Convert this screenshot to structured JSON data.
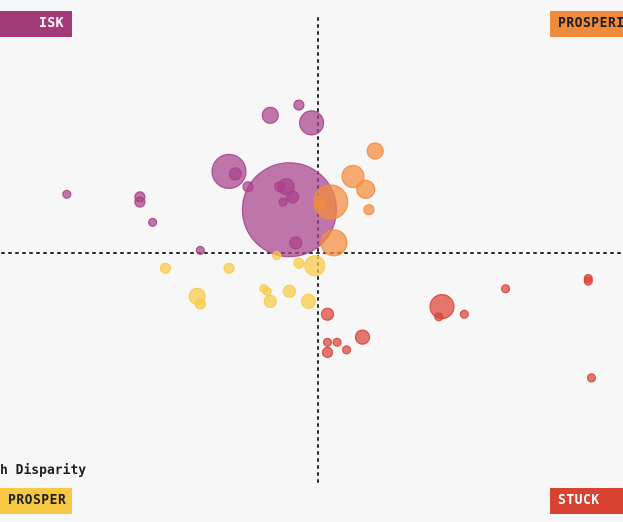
{
  "quadrants": {
    "top_left": "ISK",
    "top_right": "PROSPERI",
    "bottom_left": "PROSPER",
    "bottom_right": "STUCK"
  },
  "axis_note": "h Disparity",
  "colors": {
    "magenta": "#a8438a",
    "orange": "#f28c3c",
    "yellow": "#f8ca46",
    "red": "#d94538",
    "crosshair": "#2a2a2a",
    "background": "#f7f7f7"
  },
  "chart_data": {
    "type": "scatter",
    "xlim": [
      -1,
      1
    ],
    "ylim": [
      -1,
      1
    ],
    "crosshair": {
      "x": 0,
      "y": 0
    },
    "series": [
      {
        "color": "magenta",
        "points": [
          {
            "x": -0.09,
            "y": 0.17,
            "size": 47
          },
          {
            "x": -0.28,
            "y": 0.32,
            "size": 17
          },
          {
            "x": -0.15,
            "y": 0.54,
            "size": 8
          },
          {
            "x": -0.02,
            "y": 0.51,
            "size": 12
          },
          {
            "x": -0.06,
            "y": 0.58,
            "size": 5
          },
          {
            "x": -0.26,
            "y": 0.31,
            "size": 6
          },
          {
            "x": -0.22,
            "y": 0.26,
            "size": 5
          },
          {
            "x": -0.1,
            "y": 0.26,
            "size": 8
          },
          {
            "x": -0.12,
            "y": 0.26,
            "size": 5
          },
          {
            "x": -0.08,
            "y": 0.22,
            "size": 6
          },
          {
            "x": -0.07,
            "y": 0.04,
            "size": 6
          },
          {
            "x": -0.79,
            "y": 0.23,
            "size": 4
          },
          {
            "x": -0.56,
            "y": 0.22,
            "size": 5
          },
          {
            "x": -0.56,
            "y": 0.2,
            "size": 5
          },
          {
            "x": -0.52,
            "y": 0.12,
            "size": 4
          },
          {
            "x": -0.37,
            "y": 0.01,
            "size": 4
          },
          {
            "x": -0.11,
            "y": 0.2,
            "size": 4
          }
        ]
      },
      {
        "color": "orange",
        "points": [
          {
            "x": 0.04,
            "y": 0.2,
            "size": 17
          },
          {
            "x": 0.11,
            "y": 0.3,
            "size": 11
          },
          {
            "x": 0.15,
            "y": 0.25,
            "size": 9
          },
          {
            "x": 0.18,
            "y": 0.4,
            "size": 8
          },
          {
            "x": 0.16,
            "y": 0.17,
            "size": 5
          },
          {
            "x": 0.05,
            "y": 0.04,
            "size": 13
          },
          {
            "x": 0.01,
            "y": 0.19,
            "size": 5
          }
        ]
      },
      {
        "color": "yellow",
        "points": [
          {
            "x": -0.01,
            "y": -0.05,
            "size": 10
          },
          {
            "x": -0.06,
            "y": -0.04,
            "size": 5
          },
          {
            "x": -0.13,
            "y": -0.01,
            "size": 4
          },
          {
            "x": -0.28,
            "y": -0.06,
            "size": 5
          },
          {
            "x": -0.48,
            "y": -0.06,
            "size": 5
          },
          {
            "x": -0.38,
            "y": -0.17,
            "size": 8
          },
          {
            "x": -0.37,
            "y": -0.2,
            "size": 5
          },
          {
            "x": -0.17,
            "y": -0.14,
            "size": 4
          },
          {
            "x": -0.16,
            "y": -0.15,
            "size": 4
          },
          {
            "x": -0.15,
            "y": -0.19,
            "size": 6
          },
          {
            "x": -0.09,
            "y": -0.15,
            "size": 6
          },
          {
            "x": -0.03,
            "y": -0.19,
            "size": 7
          }
        ]
      },
      {
        "color": "red",
        "points": [
          {
            "x": 0.39,
            "y": -0.21,
            "size": 12
          },
          {
            "x": 0.38,
            "y": -0.25,
            "size": 4
          },
          {
            "x": 0.46,
            "y": -0.24,
            "size": 4
          },
          {
            "x": 0.03,
            "y": -0.24,
            "size": 6
          },
          {
            "x": 0.14,
            "y": -0.33,
            "size": 7
          },
          {
            "x": 0.03,
            "y": -0.35,
            "size": 4
          },
          {
            "x": 0.06,
            "y": -0.35,
            "size": 4
          },
          {
            "x": 0.03,
            "y": -0.39,
            "size": 5
          },
          {
            "x": 0.09,
            "y": -0.38,
            "size": 4
          },
          {
            "x": 0.59,
            "y": -0.14,
            "size": 4
          },
          {
            "x": 0.85,
            "y": -0.1,
            "size": 4
          },
          {
            "x": 0.85,
            "y": -0.11,
            "size": 4
          },
          {
            "x": 0.86,
            "y": -0.49,
            "size": 4
          }
        ]
      }
    ]
  }
}
